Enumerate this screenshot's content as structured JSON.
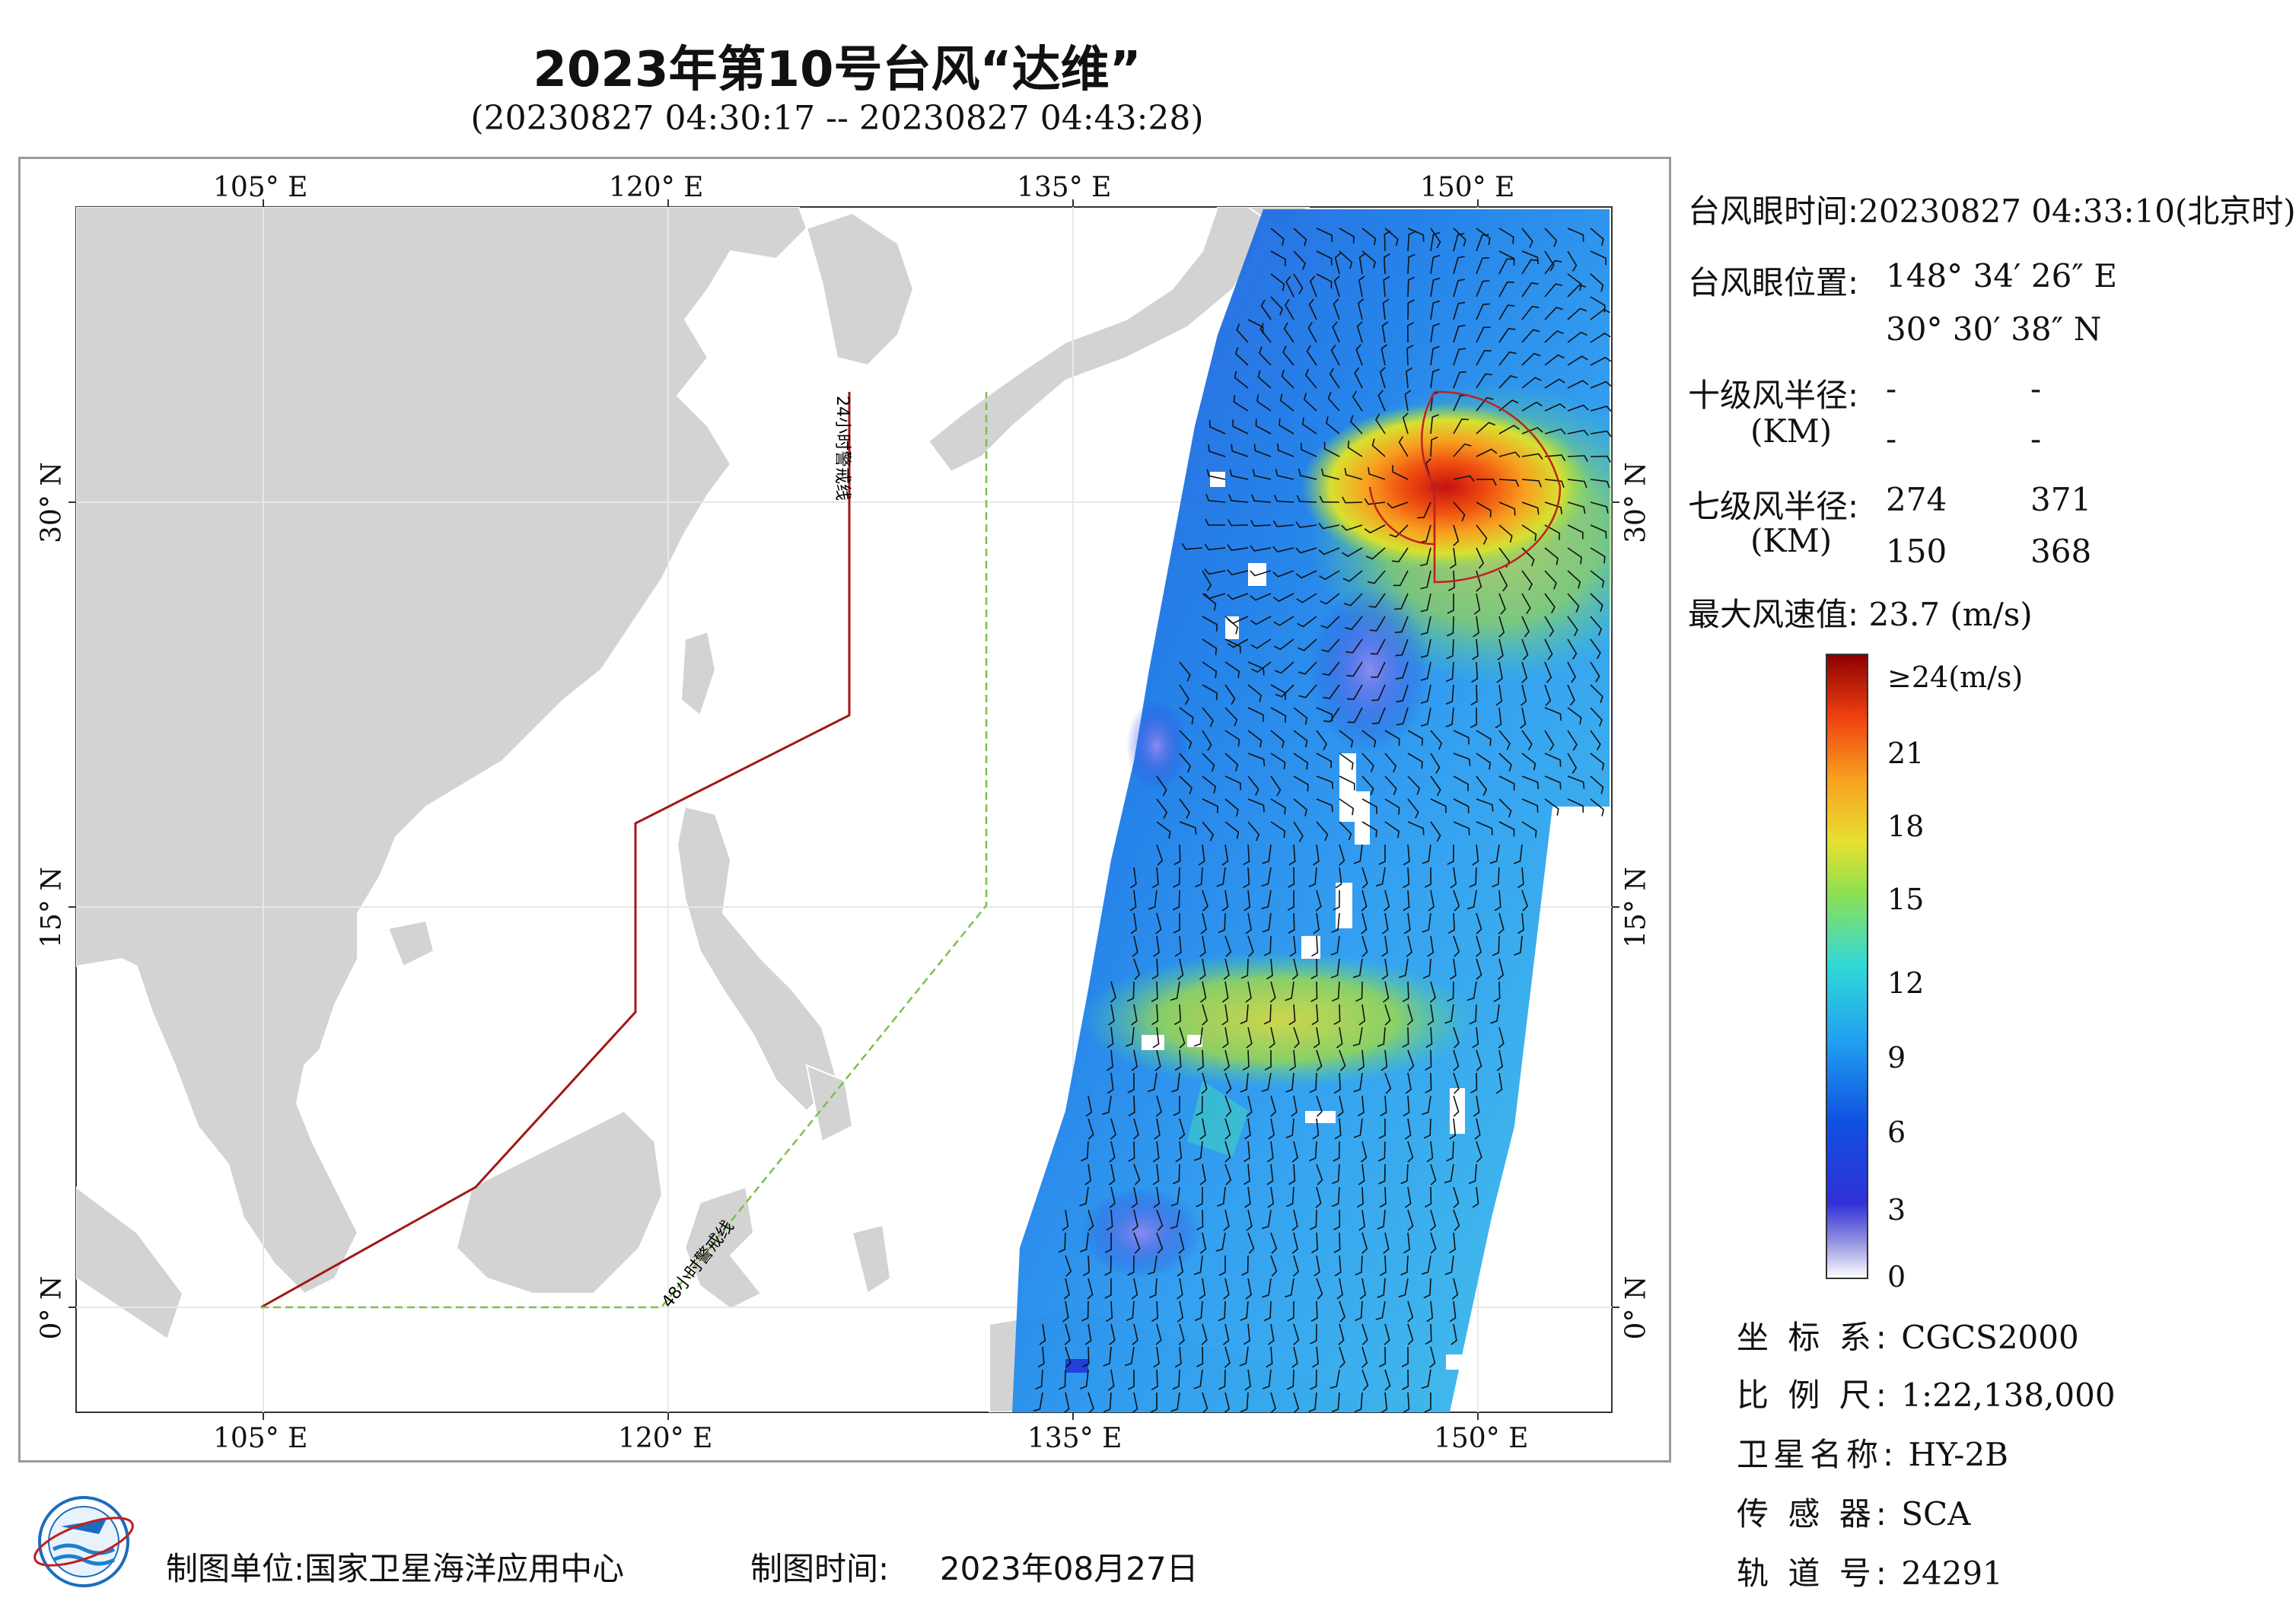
{
  "header": {
    "title": "2023年第10号台风“达维”",
    "time_range": "(20230827 04:30:17 -- 20230827 04:43:28)"
  },
  "map": {
    "top_lon_labels": [
      "105° E",
      "120° E",
      "135° E",
      "150° E"
    ],
    "bottom_lon_labels": [
      "105° E",
      "120° E",
      "135° E",
      "150° E"
    ],
    "lat_labels": [
      "30° N",
      "15° N",
      "0° N"
    ],
    "warning_line_24h": "24小时警戒线",
    "warning_line_48h": "48小时警戒线",
    "colors": {
      "land": "#d3d3d3",
      "sea": "#ffffff",
      "warning_24h": "#a01818",
      "warning_48h": "#7cc04a",
      "typhoon_circle": "#c02020"
    }
  },
  "typhoon_info": {
    "eye_time_label": "台风眼时间:",
    "eye_time_value": "20230827 04:33:10(北京时)",
    "eye_position_label": "台风眼位置:",
    "eye_lon": "148° 34′ 26″ E",
    "eye_lat": "30° 30′ 38″ N",
    "r10_label": "十级风半径:",
    "r10_unit": "(KM)",
    "r10_values": [
      "-",
      "-",
      "-",
      "-"
    ],
    "r7_label": "七级风半径:",
    "r7_unit": "(KM)",
    "r7_values": [
      "274",
      "371",
      "150",
      "368"
    ],
    "max_wind_label": "最大风速值:",
    "max_wind_value": "23.7",
    "max_wind_unit": "(m/s)"
  },
  "colorbar": {
    "labels": [
      "≥24(m/s)",
      "21",
      "18",
      "15",
      "12",
      "9",
      "6",
      "3",
      "0"
    ],
    "range": [
      0,
      24
    ]
  },
  "metadata": {
    "crs_label": "坐 标 系:",
    "crs_value": "CGCS2000",
    "scale_label": "比 例 尺:",
    "scale_value": "1:22,138,000",
    "satellite_label": "卫星名称:",
    "satellite_value": "HY-2B",
    "sensor_label": "传 感 器:",
    "sensor_value": "SCA",
    "orbit_label": "轨 道 号:",
    "orbit_value": "24291"
  },
  "footer": {
    "producer_label": "制图单位:",
    "producer_value": "国家卫星海洋应用中心",
    "date_label": "制图时间:",
    "date_value": "2023年08月27日"
  },
  "logo": {
    "icon": "nsoas-logo-icon"
  }
}
